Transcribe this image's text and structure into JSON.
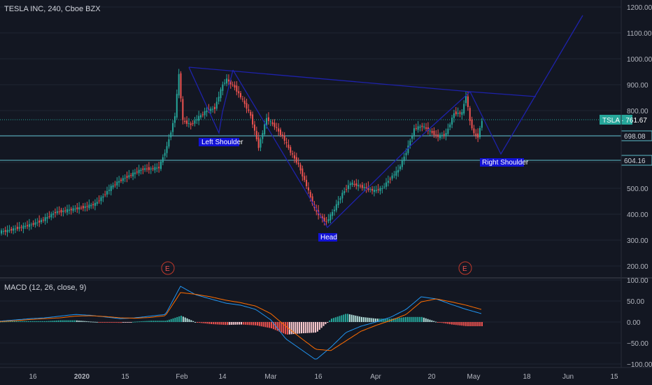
{
  "header": {
    "title": "TESLA INC, 240, Cboe BZX"
  },
  "macd_header": {
    "label": "MACD (12, 26, close, 9)"
  },
  "price_tags": {
    "symbol_tag": "TSLA · 761.67",
    "level_1": "698.08",
    "level_2": "604.16"
  },
  "annotations": {
    "left_shoulder": "Left Shoulder",
    "head": "Head",
    "right_shoulder": "Right Shoulder",
    "earnings_1": "E",
    "earnings_2": "E"
  },
  "colors": {
    "background": "#131722",
    "up": "#26a69a",
    "down": "#ef5350",
    "pattern_line": "#1e22aa",
    "level_line": "#5dbcc9",
    "label_bg": "#1212d6",
    "macd_line": "#2196f3",
    "signal_line": "#ff6d00"
  },
  "chart_data": [
    {
      "type": "candlestick",
      "title": "TESLA INC, 240, Cboe BZX",
      "x_ticks": [
        "16",
        "2020",
        "15",
        "Feb",
        "14",
        "Mar",
        "16",
        "Apr",
        "20",
        "May",
        "18",
        "Jun",
        "15"
      ],
      "y_ticks": [
        200,
        300,
        400,
        500,
        600,
        700,
        800,
        900,
        1000,
        1100,
        1200
      ],
      "y_tick_labels": [
        "200.00",
        "300.00",
        "400.00",
        "500.00",
        "600.00",
        "700.00",
        "800.00",
        "900.00",
        "1000.00",
        "1100.00",
        "1200.00"
      ],
      "ylim": [
        130,
        1270
      ],
      "last_price": 761.67,
      "horizontal_levels": [
        698.08,
        604.16
      ],
      "close_series": [
        {
          "x": 0,
          "y": 332
        },
        {
          "x": 4,
          "y": 336
        },
        {
          "x": 8,
          "y": 345
        },
        {
          "x": 12,
          "y": 352
        },
        {
          "x": 16,
          "y": 360
        },
        {
          "x": 20,
          "y": 372
        },
        {
          "x": 24,
          "y": 388
        },
        {
          "x": 28,
          "y": 408
        },
        {
          "x": 32,
          "y": 412
        },
        {
          "x": 36,
          "y": 418
        },
        {
          "x": 40,
          "y": 424
        },
        {
          "x": 44,
          "y": 430
        },
        {
          "x": 48,
          "y": 440
        },
        {
          "x": 52,
          "y": 470
        },
        {
          "x": 56,
          "y": 505
        },
        {
          "x": 60,
          "y": 528
        },
        {
          "x": 64,
          "y": 545
        },
        {
          "x": 68,
          "y": 560
        },
        {
          "x": 72,
          "y": 575
        },
        {
          "x": 76,
          "y": 575
        },
        {
          "x": 80,
          "y": 580
        },
        {
          "x": 84,
          "y": 660
        },
        {
          "x": 88,
          "y": 780
        },
        {
          "x": 90,
          "y": 940
        },
        {
          "x": 92,
          "y": 760
        },
        {
          "x": 96,
          "y": 745
        },
        {
          "x": 100,
          "y": 775
        },
        {
          "x": 104,
          "y": 800
        },
        {
          "x": 108,
          "y": 810
        },
        {
          "x": 112,
          "y": 900
        },
        {
          "x": 114,
          "y": 920
        },
        {
          "x": 118,
          "y": 890
        },
        {
          "x": 122,
          "y": 840
        },
        {
          "x": 126,
          "y": 780
        },
        {
          "x": 130,
          "y": 660
        },
        {
          "x": 134,
          "y": 770
        },
        {
          "x": 138,
          "y": 740
        },
        {
          "x": 142,
          "y": 700
        },
        {
          "x": 146,
          "y": 640
        },
        {
          "x": 150,
          "y": 590
        },
        {
          "x": 154,
          "y": 510
        },
        {
          "x": 158,
          "y": 420
        },
        {
          "x": 162,
          "y": 380
        },
        {
          "x": 164,
          "y": 370
        },
        {
          "x": 168,
          "y": 420
        },
        {
          "x": 172,
          "y": 480
        },
        {
          "x": 176,
          "y": 520
        },
        {
          "x": 180,
          "y": 510
        },
        {
          "x": 184,
          "y": 500
        },
        {
          "x": 188,
          "y": 490
        },
        {
          "x": 192,
          "y": 500
        },
        {
          "x": 196,
          "y": 540
        },
        {
          "x": 200,
          "y": 570
        },
        {
          "x": 204,
          "y": 640
        },
        {
          "x": 208,
          "y": 730
        },
        {
          "x": 212,
          "y": 740
        },
        {
          "x": 216,
          "y": 720
        },
        {
          "x": 220,
          "y": 700
        },
        {
          "x": 224,
          "y": 710
        },
        {
          "x": 228,
          "y": 790
        },
        {
          "x": 232,
          "y": 790
        },
        {
          "x": 234,
          "y": 860
        },
        {
          "x": 236,
          "y": 760
        },
        {
          "x": 238,
          "y": 710
        },
        {
          "x": 240,
          "y": 700
        },
        {
          "x": 242,
          "y": 762
        }
      ],
      "pattern_lines": [
        {
          "name": "Left Shoulder",
          "points": [
            [
              8,
              965
            ],
            [
              18,
              705
            ],
            [
              24,
              800
            ],
            [
              31,
              945
            ]
          ]
        },
        {
          "name": "Head",
          "points": [
            [
              31,
              945
            ],
            [
              68,
              345
            ],
            [
              96,
              640
            ],
            [
              108,
              870
            ]
          ]
        },
        {
          "name": "Right Shoulder",
          "points": [
            [
              108,
              870
            ],
            [
              124,
              630
            ],
            [
              150,
              1160
            ]
          ]
        },
        {
          "name": "neckline",
          "points": [
            [
              8,
              965
            ],
            [
              108,
              870
            ],
            [
              124,
              855
            ]
          ]
        }
      ]
    },
    {
      "type": "line",
      "title": "MACD (12, 26, close, 9)",
      "y_ticks": [
        -100,
        -50,
        0,
        50,
        100
      ],
      "y_tick_labels": [
        "−100.00",
        "−50.00",
        "0.00",
        "50.00",
        "100.00"
      ],
      "ylim": [
        -100,
        100
      ],
      "series": [
        {
          "name": "MACD",
          "values": [
            2,
            5,
            8,
            10,
            14,
            18,
            16,
            12,
            8,
            10,
            14,
            18,
            85,
            65,
            55,
            45,
            40,
            30,
            5,
            -40,
            -65,
            -90,
            -60,
            -25,
            -10,
            0,
            12,
            30,
            60,
            55,
            42,
            30,
            20
          ]
        },
        {
          "name": "Signal",
          "values": [
            1,
            3,
            6,
            8,
            10,
            14,
            15,
            13,
            10,
            9,
            11,
            15,
            70,
            66,
            60,
            52,
            46,
            38,
            20,
            -10,
            -38,
            -65,
            -68,
            -45,
            -22,
            -8,
            4,
            18,
            48,
            55,
            48,
            40,
            30
          ]
        },
        {
          "name": "Histogram",
          "values": [
            1,
            2,
            2,
            2,
            4,
            4,
            1,
            -1,
            -2,
            1,
            3,
            3,
            15,
            -1,
            -5,
            -7,
            -6,
            -8,
            -15,
            -30,
            -27,
            -25,
            8,
            20,
            12,
            8,
            8,
            12,
            12,
            0,
            -6,
            -10,
            -10
          ]
        }
      ]
    }
  ]
}
